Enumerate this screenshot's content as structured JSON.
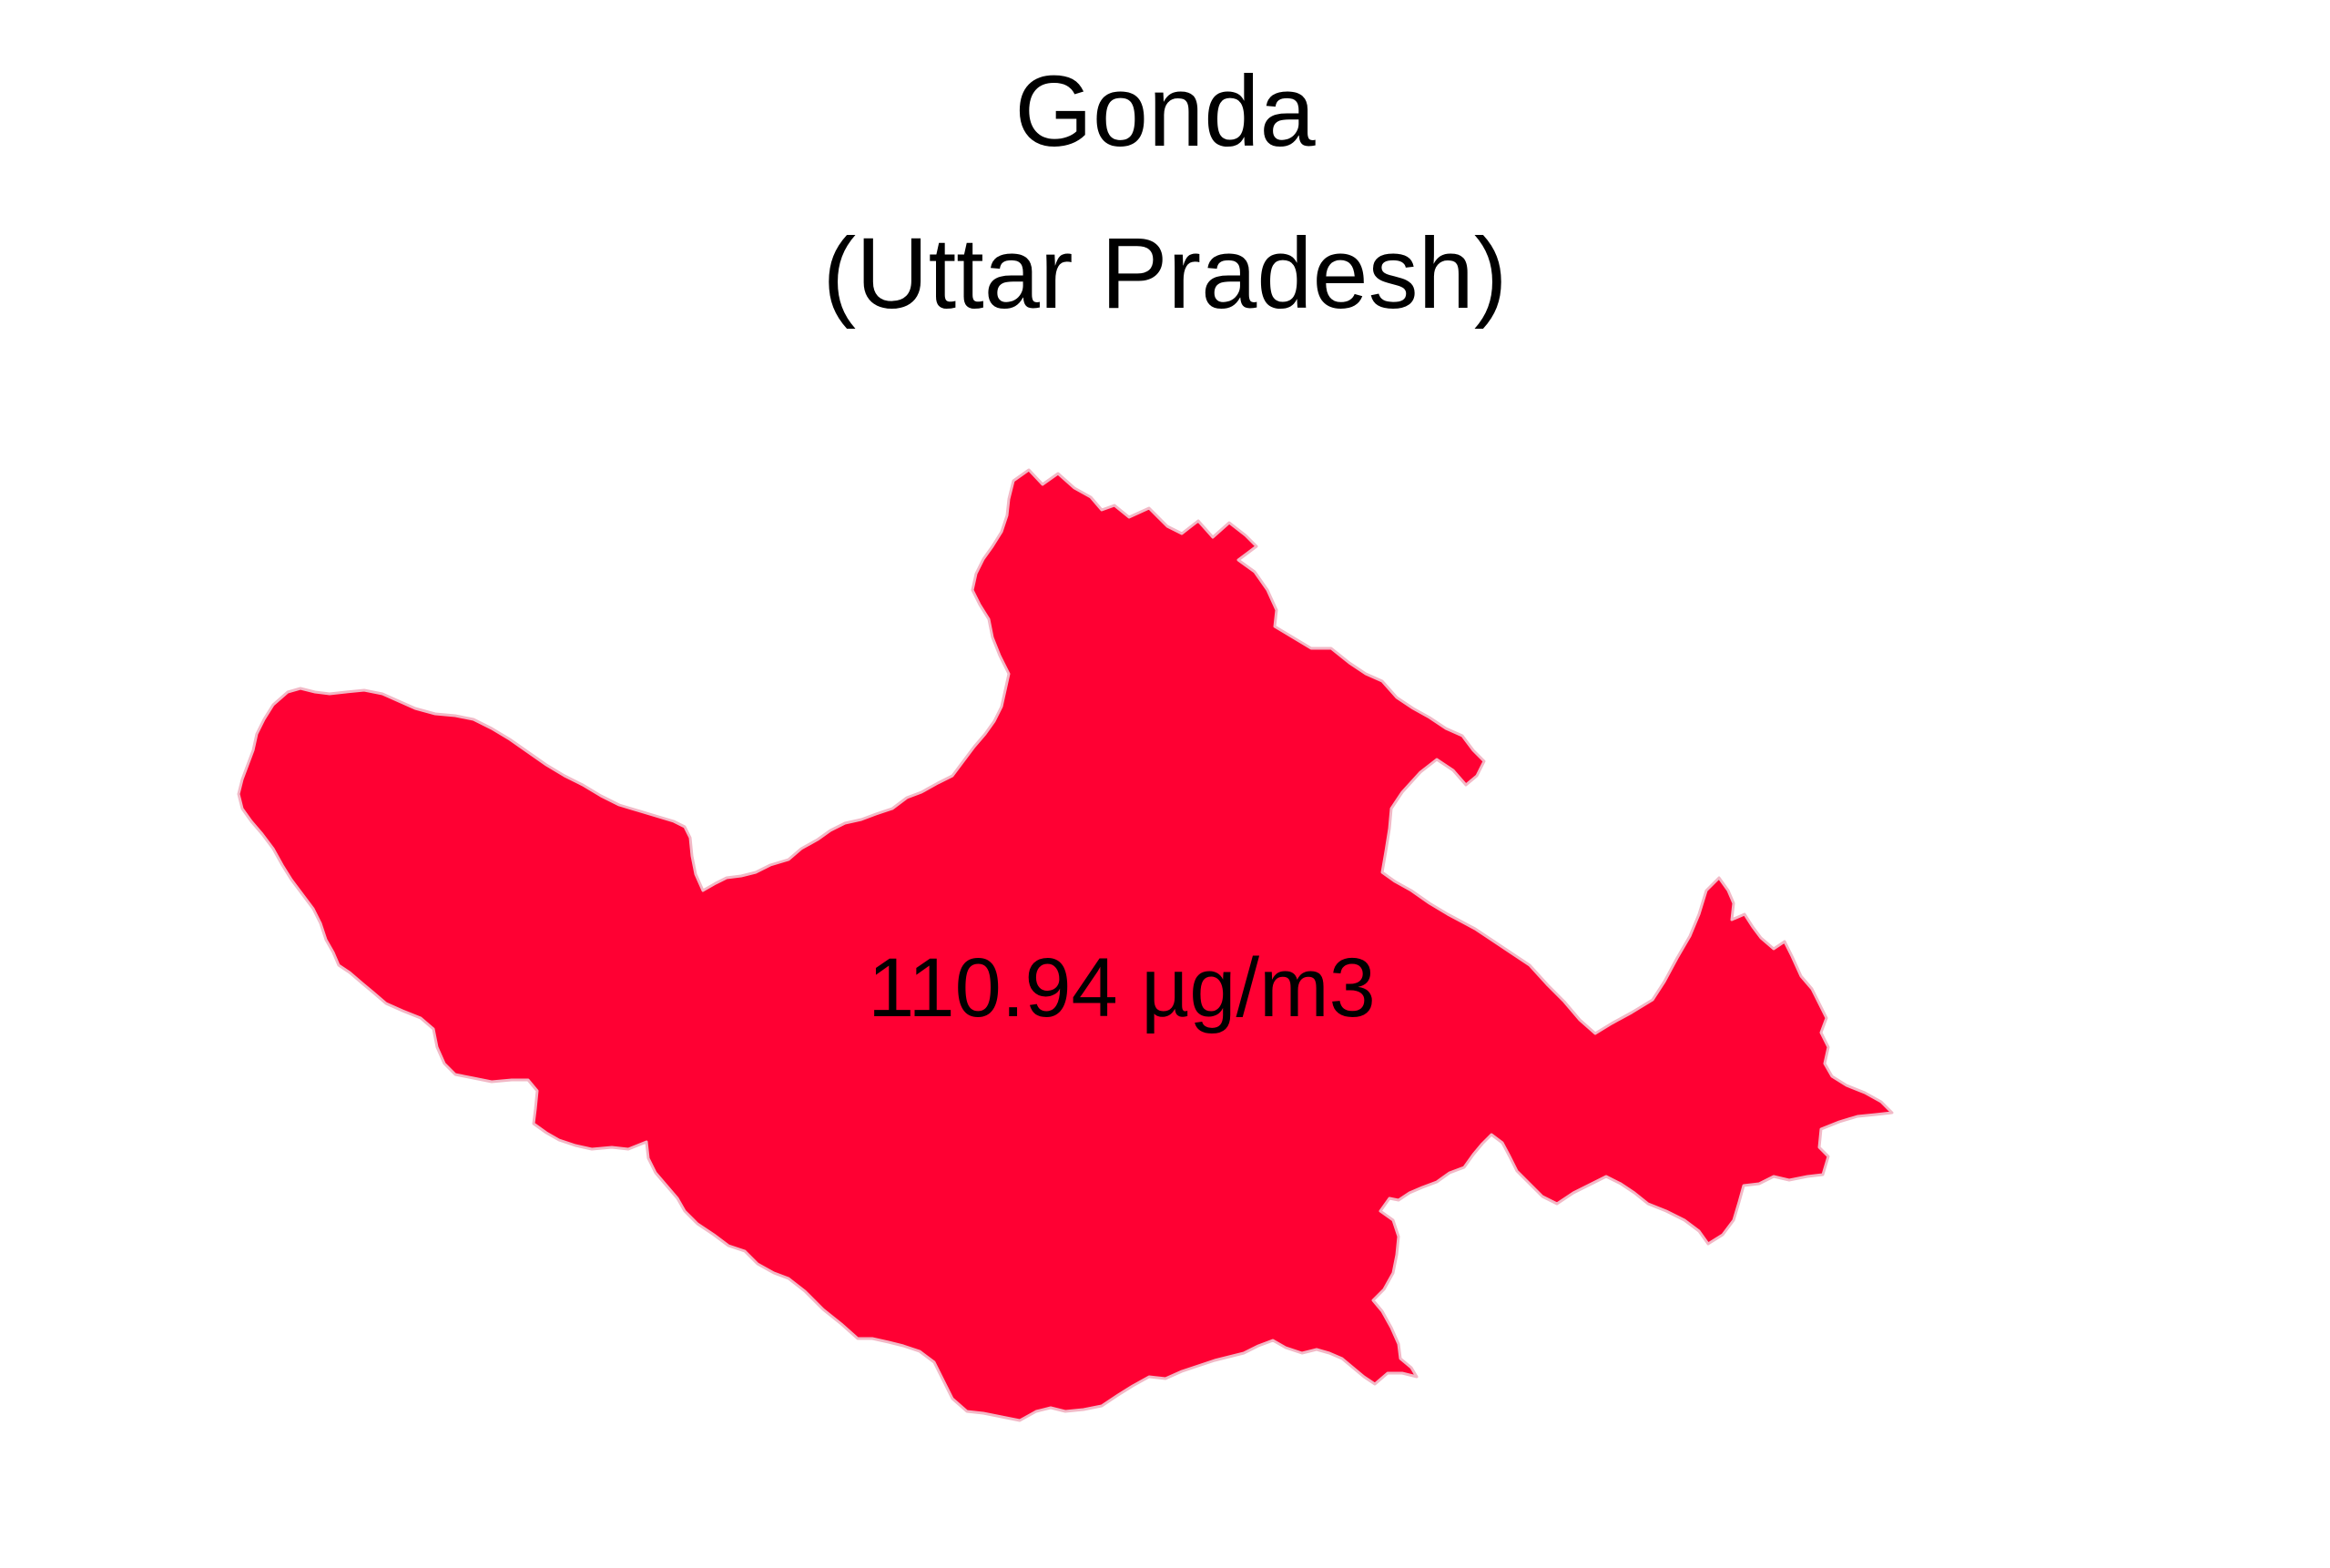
{
  "map": {
    "district": "Gonda",
    "state": "(Uttar Pradesh)",
    "value_label": "110.94 µg/m3",
    "fill_color": "#FF0033",
    "border_color": "#F2B8C6",
    "background_color": "#FFFFFF"
  }
}
